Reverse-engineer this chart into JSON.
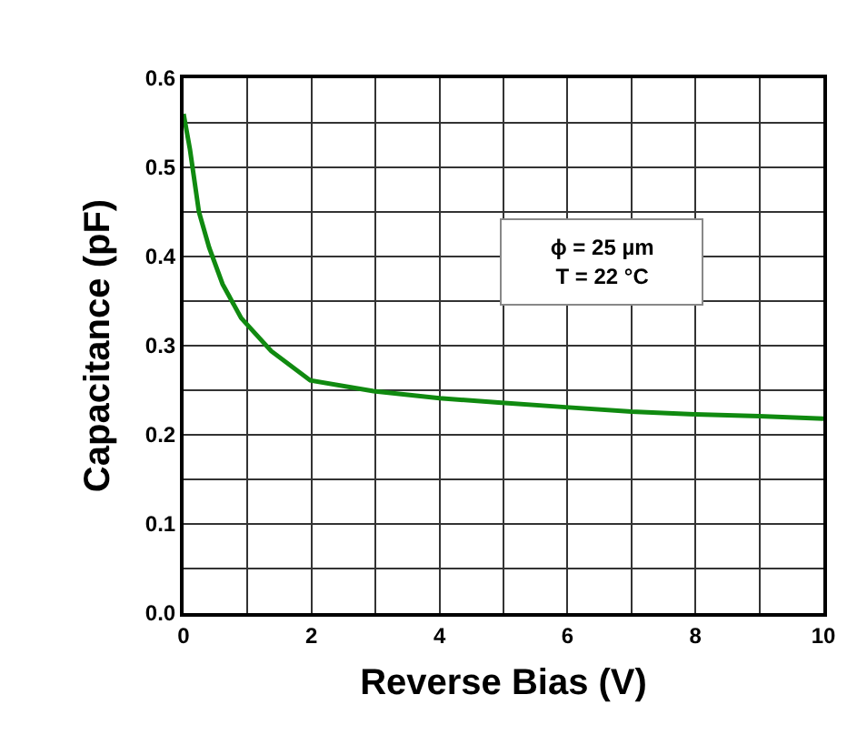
{
  "chart_data": {
    "type": "line",
    "xlabel": "Reverse Bias (V)",
    "ylabel": "Capacitance (pF)",
    "x": [
      0,
      0.1,
      0.24,
      0.4,
      0.61,
      0.9,
      1.37,
      1.98,
      2.97,
      4.0,
      4.97,
      5.97,
      7.0,
      8.0,
      9.0,
      10
    ],
    "series": [
      {
        "color": "#108a10",
        "values": [
          0.56,
          0.52,
          0.45,
          0.41,
          0.369,
          0.331,
          0.294,
          0.261,
          0.249,
          0.241,
          0.236,
          0.231,
          0.226,
          0.223,
          0.221,
          0.218
        ]
      }
    ],
    "xlim": [
      0,
      10
    ],
    "ylim": [
      0,
      0.6
    ],
    "xticks": [
      0,
      {
        "value": 1,
        "label": null
      },
      2,
      {
        "value": 3,
        "label": null
      },
      4,
      {
        "value": 5,
        "label": null
      },
      6,
      {
        "value": 7,
        "label": null
      },
      8,
      {
        "value": 9,
        "label": null
      },
      10
    ],
    "yticks": [
      {
        "value": 0,
        "label": "0.0"
      },
      {
        "value": 0.05,
        "label": null
      },
      0.1,
      {
        "value": 0.15,
        "label": null
      },
      0.2,
      {
        "value": 0.25,
        "label": null
      },
      0.3,
      {
        "value": 0.35,
        "label": null
      },
      0.4,
      {
        "value": 0.45,
        "label": null
      },
      0.5,
      {
        "value": 0.55,
        "label": null
      },
      0.6
    ],
    "grid": true,
    "marker": "none",
    "line_style": "solid",
    "annotations": [
      "ϕ = 25 µm",
      "T = 22 °C"
    ]
  }
}
